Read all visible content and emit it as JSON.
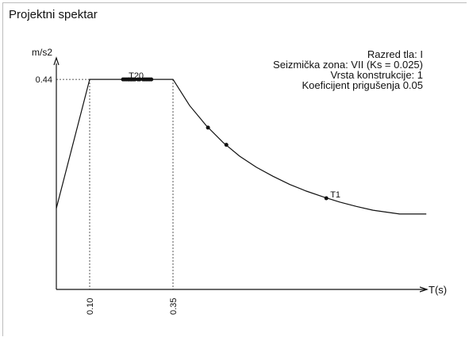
{
  "window": {
    "title": "Projektni spektar"
  },
  "info": {
    "lines": [
      "Razred tla: I",
      "Seizmička zona: VII (Ks = 0.025)",
      "Vrsta konstrukcije: 1",
      "Koeficijent prigušenja 0.05"
    ]
  },
  "chart_data": {
    "type": "line",
    "title": "",
    "xlabel": "T(s)",
    "ylabel": "m/s2",
    "xlim": [
      0,
      1.1
    ],
    "ylim": [
      0,
      0.5
    ],
    "grid": false,
    "legend": "none",
    "x_ticks": [
      {
        "value": 0.1,
        "label": "0.10"
      },
      {
        "value": 0.35,
        "label": "0.35"
      }
    ],
    "y_ticks": [
      {
        "value": 0.44,
        "label": "0.44"
      }
    ],
    "series": [
      {
        "values": [
          [
            0.0,
            0.17
          ],
          [
            0.1,
            0.44
          ],
          [
            0.35,
            0.44
          ],
          [
            0.4,
            0.385
          ],
          [
            0.45,
            0.343
          ],
          [
            0.5,
            0.308
          ],
          [
            0.55,
            0.279
          ],
          [
            0.6,
            0.256
          ],
          [
            0.65,
            0.237
          ],
          [
            0.7,
            0.22
          ],
          [
            0.75,
            0.206
          ],
          [
            0.8,
            0.194
          ],
          [
            0.85,
            0.183
          ],
          [
            0.9,
            0.174
          ],
          [
            0.95,
            0.166
          ],
          [
            1.03,
            0.158
          ],
          [
            1.11,
            0.158
          ]
        ]
      }
    ],
    "points": [
      {
        "x": 0.2,
        "y": 0.44,
        "label": ""
      },
      {
        "x": 0.205,
        "y": 0.44,
        "label": "T20"
      },
      {
        "x": 0.21,
        "y": 0.44,
        "label": ""
      },
      {
        "x": 0.215,
        "y": 0.44,
        "label": ""
      },
      {
        "x": 0.218,
        "y": 0.44,
        "label": ""
      },
      {
        "x": 0.222,
        "y": 0.44,
        "label": ""
      },
      {
        "x": 0.225,
        "y": 0.44,
        "label": ""
      },
      {
        "x": 0.228,
        "y": 0.44,
        "label": ""
      },
      {
        "x": 0.232,
        "y": 0.44,
        "label": ""
      },
      {
        "x": 0.236,
        "y": 0.44,
        "label": ""
      },
      {
        "x": 0.245,
        "y": 0.44,
        "label": ""
      },
      {
        "x": 0.25,
        "y": 0.44,
        "label": ""
      },
      {
        "x": 0.26,
        "y": 0.44,
        "label": ""
      },
      {
        "x": 0.265,
        "y": 0.44,
        "label": ""
      },
      {
        "x": 0.27,
        "y": 0.44,
        "label": ""
      },
      {
        "x": 0.275,
        "y": 0.44,
        "label": ""
      },
      {
        "x": 0.28,
        "y": 0.44,
        "label": ""
      },
      {
        "x": 0.285,
        "y": 0.44,
        "label": ""
      },
      {
        "x": 0.455,
        "y": 0.339,
        "label": ""
      },
      {
        "x": 0.51,
        "y": 0.303,
        "label": ""
      },
      {
        "x": 0.81,
        "y": 0.191,
        "label": "T1"
      }
    ]
  }
}
